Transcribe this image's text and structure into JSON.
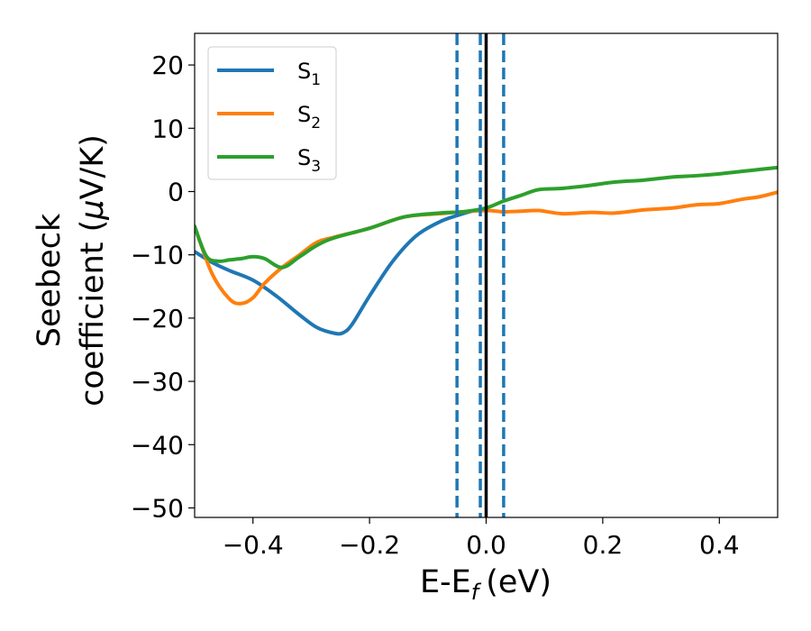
{
  "chart_data": {
    "type": "line",
    "xlabel": "E-E",
    "xlabel_sub": "f",
    "xlabel_unit": "(eV)",
    "ylabel_line1": "Seebeck",
    "ylabel_line2_pre": "coefficient  (",
    "ylabel_line2_mu": "μ",
    "ylabel_line2_post": "V/K)",
    "xlim": [
      -0.5,
      0.5
    ],
    "ylim": [
      -51.5,
      25
    ],
    "xticks": [
      -0.4,
      -0.2,
      0.0,
      0.2,
      0.4
    ],
    "xtick_labels": [
      "−0.4",
      "−0.2",
      "0.0",
      "0.2",
      "0.4"
    ],
    "yticks": [
      20,
      10,
      0,
      -10,
      -20,
      -30,
      -40,
      -50
    ],
    "ytick_labels": [
      "20",
      "10",
      "0",
      "−10",
      "−20",
      "−30",
      "−40",
      "−50"
    ],
    "legend_position": "upper-left",
    "vlines": [
      {
        "x": -0.05,
        "style": "dashed",
        "color": "#1f77b4"
      },
      {
        "x": -0.01,
        "style": "dashed",
        "color": "#1f77b4"
      },
      {
        "x": 0.03,
        "style": "dashed",
        "color": "#1f77b4"
      },
      {
        "x": 0.0,
        "style": "solid",
        "color": "#000000"
      }
    ],
    "series": [
      {
        "name": "S",
        "sub": "1",
        "color": "#1f77b4",
        "x": [
          -0.5,
          -0.47,
          -0.44,
          -0.4,
          -0.36,
          -0.32,
          -0.29,
          -0.26,
          -0.245,
          -0.23,
          -0.2,
          -0.16,
          -0.12,
          -0.08,
          -0.05,
          -0.02,
          0.0
        ],
        "y": [
          -9.5,
          -11.2,
          -12.5,
          -14.0,
          -16.5,
          -19.5,
          -21.5,
          -22.4,
          -22.3,
          -21.0,
          -16.5,
          -11.0,
          -7.0,
          -4.8,
          -3.8,
          -3.0,
          -2.8
        ]
      },
      {
        "name": "S",
        "sub": "2",
        "color": "#ff7f0e",
        "x": [
          -0.5,
          -0.47,
          -0.44,
          -0.42,
          -0.4,
          -0.38,
          -0.35,
          -0.32,
          -0.29,
          -0.26,
          -0.2,
          -0.14,
          -0.08,
          -0.04,
          0.0,
          0.03,
          0.06,
          0.09,
          0.13,
          0.18,
          0.22,
          0.27,
          0.32,
          0.36,
          0.4,
          0.44,
          0.47,
          0.5
        ],
        "y": [
          -5.5,
          -13.0,
          -17.0,
          -17.7,
          -16.8,
          -14.5,
          -12.0,
          -10.0,
          -8.0,
          -7.2,
          -5.8,
          -4.0,
          -3.5,
          -3.2,
          -3.0,
          -3.2,
          -3.1,
          -3.0,
          -3.5,
          -3.3,
          -3.4,
          -2.9,
          -2.6,
          -2.1,
          -1.9,
          -1.2,
          -0.8,
          -0.1
        ]
      },
      {
        "name": "S",
        "sub": "3",
        "color": "#2ca02c",
        "x": [
          -0.5,
          -0.48,
          -0.46,
          -0.44,
          -0.42,
          -0.4,
          -0.38,
          -0.35,
          -0.32,
          -0.29,
          -0.26,
          -0.2,
          -0.14,
          -0.08,
          -0.04,
          0.0,
          0.03,
          0.06,
          0.09,
          0.13,
          0.18,
          0.22,
          0.27,
          0.32,
          0.36,
          0.4,
          0.44,
          0.47,
          0.5
        ],
        "y": [
          -5.5,
          -10.2,
          -11.0,
          -10.8,
          -10.6,
          -10.3,
          -10.6,
          -12.0,
          -10.3,
          -8.5,
          -7.3,
          -5.8,
          -4.0,
          -3.4,
          -3.2,
          -2.6,
          -1.5,
          -0.6,
          0.3,
          0.5,
          1.0,
          1.5,
          1.8,
          2.3,
          2.5,
          2.8,
          3.2,
          3.5,
          3.8
        ]
      }
    ]
  }
}
